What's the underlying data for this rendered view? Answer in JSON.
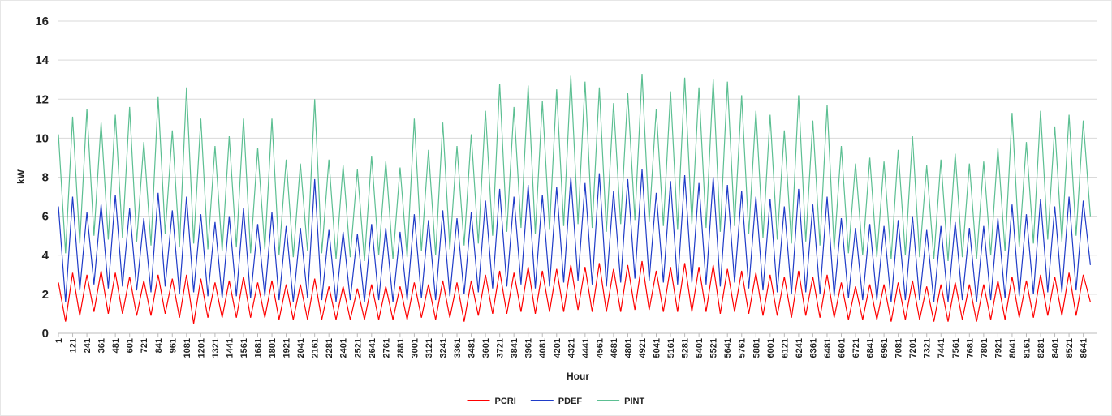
{
  "chart_data": {
    "type": "line",
    "x_label": "Hour",
    "y_label": "kW",
    "x": [
      1,
      61,
      121,
      181,
      241,
      301,
      361,
      421,
      481,
      541,
      601,
      661,
      721,
      781,
      841,
      901,
      961,
      1021,
      1081,
      1141,
      1201,
      1261,
      1321,
      1381,
      1441,
      1501,
      1561,
      1621,
      1681,
      1741,
      1801,
      1861,
      1921,
      1981,
      2041,
      2101,
      2161,
      2221,
      2281,
      2341,
      2401,
      2461,
      2521,
      2581,
      2641,
      2701,
      2761,
      2821,
      2881,
      2941,
      3001,
      3061,
      3121,
      3181,
      3241,
      3301,
      3361,
      3421,
      3481,
      3541,
      3601,
      3661,
      3721,
      3781,
      3841,
      3901,
      3961,
      4021,
      4081,
      4141,
      4201,
      4261,
      4321,
      4381,
      4441,
      4501,
      4561,
      4621,
      4681,
      4741,
      4801,
      4861,
      4921,
      4981,
      5041,
      5101,
      5161,
      5221,
      5281,
      5341,
      5401,
      5461,
      5521,
      5581,
      5641,
      5701,
      5761,
      5821,
      5881,
      5941,
      6001,
      6061,
      6121,
      6181,
      6241,
      6301,
      6361,
      6421,
      6481,
      6541,
      6601,
      6661,
      6721,
      6781,
      6841,
      6901,
      6961,
      7021,
      7081,
      7141,
      7201,
      7261,
      7321,
      7381,
      7441,
      7501,
      7561,
      7621,
      7681,
      7741,
      7801,
      7861,
      7921,
      7981,
      8041,
      8101,
      8161,
      8221,
      8281,
      8341,
      8401,
      8461,
      8521,
      8581,
      8641,
      8701
    ],
    "series": [
      {
        "name": "PCRI",
        "color": "#ff0000",
        "values": [
          2.6,
          0.6,
          3.1,
          0.9,
          3.0,
          1.1,
          3.2,
          1.0,
          3.1,
          1.0,
          2.9,
          0.9,
          2.7,
          0.9,
          3.0,
          1.0,
          2.8,
          0.8,
          3.0,
          0.5,
          2.8,
          0.8,
          2.6,
          0.8,
          2.7,
          0.8,
          2.9,
          0.8,
          2.6,
          0.8,
          2.7,
          0.7,
          2.5,
          0.7,
          2.5,
          0.7,
          2.8,
          0.7,
          2.4,
          0.7,
          2.4,
          0.7,
          2.3,
          0.7,
          2.5,
          0.7,
          2.4,
          0.7,
          2.4,
          0.7,
          2.6,
          0.8,
          2.5,
          0.7,
          2.7,
          0.8,
          2.6,
          0.6,
          2.7,
          0.9,
          3.0,
          1.0,
          3.2,
          1.0,
          3.1,
          1.1,
          3.4,
          1.0,
          3.2,
          1.1,
          3.3,
          1.1,
          3.5,
          1.2,
          3.4,
          1.1,
          3.6,
          1.1,
          3.3,
          1.1,
          3.5,
          1.2,
          3.7,
          1.2,
          3.2,
          1.1,
          3.4,
          1.1,
          3.6,
          1.1,
          3.4,
          1.1,
          3.5,
          1.0,
          3.3,
          1.1,
          3.2,
          1.0,
          3.1,
          0.9,
          3.0,
          0.9,
          2.9,
          0.8,
          3.2,
          0.9,
          2.9,
          0.8,
          3.0,
          0.8,
          2.6,
          0.7,
          2.4,
          0.7,
          2.5,
          0.7,
          2.5,
          0.6,
          2.6,
          0.7,
          2.7,
          0.7,
          2.4,
          0.6,
          2.5,
          0.6,
          2.6,
          0.7,
          2.5,
          0.6,
          2.5,
          0.7,
          2.7,
          0.7,
          2.9,
          0.8,
          2.7,
          0.8,
          3.0,
          0.9,
          2.9,
          0.9,
          3.1,
          0.9,
          3.0,
          1.6
        ]
      },
      {
        "name": "PDEF",
        "color": "#1f3cc8",
        "values": [
          6.5,
          1.6,
          7.0,
          2.2,
          6.2,
          2.5,
          6.6,
          2.3,
          7.1,
          2.4,
          6.4,
          2.2,
          5.9,
          2.1,
          7.2,
          2.4,
          6.3,
          2.0,
          7.0,
          2.1,
          6.1,
          1.9,
          5.7,
          1.8,
          6.0,
          1.9,
          6.4,
          1.8,
          5.6,
          1.9,
          6.2,
          1.7,
          5.5,
          1.6,
          5.4,
          1.8,
          7.9,
          1.7,
          5.3,
          1.6,
          5.2,
          1.7,
          5.1,
          1.6,
          5.6,
          1.7,
          5.4,
          1.6,
          5.2,
          1.7,
          6.1,
          1.8,
          5.8,
          1.7,
          6.3,
          1.9,
          5.9,
          2.0,
          6.2,
          2.1,
          6.8,
          2.3,
          7.4,
          2.4,
          7.0,
          2.5,
          7.6,
          2.3,
          7.1,
          2.4,
          7.5,
          2.6,
          8.0,
          2.7,
          7.7,
          2.5,
          8.2,
          2.4,
          7.3,
          2.6,
          7.9,
          2.8,
          8.4,
          2.7,
          7.2,
          2.6,
          7.8,
          2.5,
          8.1,
          2.6,
          7.7,
          2.5,
          8.0,
          2.4,
          7.6,
          2.6,
          7.3,
          2.3,
          7.0,
          2.2,
          6.9,
          2.1,
          6.5,
          2.0,
          7.4,
          2.1,
          6.6,
          2.0,
          7.0,
          1.9,
          5.9,
          1.8,
          5.4,
          1.7,
          5.6,
          1.7,
          5.5,
          1.6,
          5.8,
          1.7,
          6.0,
          1.7,
          5.3,
          1.6,
          5.5,
          1.6,
          5.7,
          1.7,
          5.4,
          1.6,
          5.5,
          1.7,
          5.9,
          1.8,
          6.6,
          1.9,
          6.1,
          2.0,
          6.9,
          2.1,
          6.5,
          2.1,
          7.0,
          2.2,
          6.8,
          3.5
        ]
      },
      {
        "name": "PINT",
        "color": "#5cbf92",
        "values": [
          10.2,
          4.1,
          11.1,
          4.6,
          11.5,
          5.0,
          10.8,
          4.8,
          11.2,
          4.9,
          11.6,
          4.7,
          9.8,
          4.5,
          12.1,
          5.1,
          10.4,
          4.4,
          12.6,
          4.6,
          11.0,
          4.3,
          9.6,
          4.2,
          10.1,
          4.4,
          11.0,
          4.1,
          9.5,
          4.3,
          11.0,
          4.0,
          8.9,
          3.9,
          8.7,
          4.2,
          12.0,
          4.1,
          8.9,
          3.8,
          8.6,
          3.9,
          8.4,
          3.7,
          9.1,
          4.0,
          8.8,
          3.8,
          8.5,
          3.9,
          11.0,
          4.2,
          9.4,
          4.0,
          10.8,
          4.3,
          9.6,
          4.5,
          10.2,
          4.6,
          11.4,
          5.0,
          12.8,
          5.2,
          11.6,
          5.4,
          12.7,
          5.1,
          11.9,
          5.3,
          12.5,
          5.5,
          13.2,
          5.6,
          12.9,
          5.4,
          12.6,
          5.2,
          11.8,
          5.6,
          12.3,
          5.8,
          13.3,
          5.7,
          11.5,
          5.5,
          12.4,
          5.3,
          13.1,
          5.6,
          12.6,
          5.4,
          13.0,
          5.2,
          12.9,
          5.5,
          12.2,
          5.1,
          11.4,
          4.9,
          11.2,
          4.8,
          10.4,
          4.6,
          12.2,
          4.7,
          10.9,
          4.5,
          11.7,
          4.3,
          9.6,
          4.1,
          8.7,
          4.0,
          9.0,
          3.9,
          8.8,
          3.8,
          9.4,
          4.0,
          10.1,
          3.9,
          8.6,
          3.8,
          8.9,
          3.7,
          9.2,
          3.9,
          8.7,
          3.8,
          8.8,
          4.0,
          9.5,
          4.2,
          11.3,
          4.4,
          9.8,
          4.6,
          11.4,
          4.8,
          10.6,
          4.7,
          11.2,
          5.0,
          10.9,
          6.0
        ]
      }
    ],
    "xlim": [
      1,
      8760
    ],
    "xticks": [
      1,
      121,
      241,
      361,
      481,
      601,
      721,
      841,
      961,
      1081,
      1201,
      1321,
      1441,
      1561,
      1681,
      1801,
      1921,
      2041,
      2161,
      2281,
      2401,
      2521,
      2641,
      2761,
      2881,
      3001,
      3121,
      3241,
      3361,
      3481,
      3601,
      3721,
      3841,
      3961,
      4081,
      4201,
      4321,
      4441,
      4561,
      4681,
      4801,
      4921,
      5041,
      5161,
      5281,
      5401,
      5521,
      5641,
      5761,
      5881,
      6001,
      6121,
      6241,
      6361,
      6481,
      6601,
      6721,
      6841,
      6961,
      7081,
      7201,
      7321,
      7441,
      7561,
      7681,
      7801,
      7921,
      8041,
      8161,
      8281,
      8401,
      8521,
      8641
    ],
    "ylim": [
      0,
      16
    ],
    "yticks": [
      0,
      2,
      4,
      6,
      8,
      10,
      12,
      14,
      16
    ],
    "grid": true,
    "legend": "bottom"
  }
}
